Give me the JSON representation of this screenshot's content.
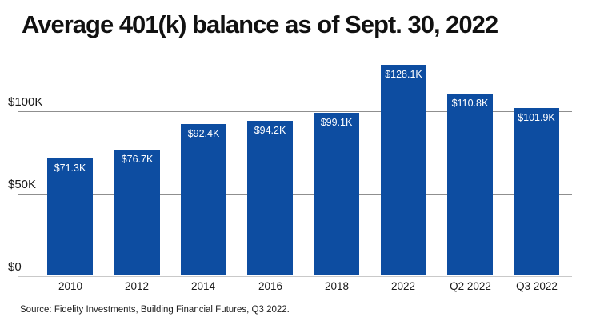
{
  "title": "Average 401(k) balance as of Sept. 30, 2022",
  "source": "Source: Fidelity Investments, Building Financial Futures, Q3 2022.",
  "chart_data": {
    "type": "bar",
    "title": "Average 401(k) balance as of Sept. 30, 2022",
    "categories": [
      "2010",
      "2012",
      "2014",
      "2016",
      "2018",
      "2022",
      "Q2 2022",
      "Q3 2022"
    ],
    "values": [
      71.3,
      76.7,
      92.4,
      94.2,
      99.1,
      128.1,
      110.8,
      101.9
    ],
    "value_labels": [
      "$71.3K",
      "$76.7K",
      "$92.4K",
      "$94.2K",
      "$99.1K",
      "$128.1K",
      "$110.8K",
      "$101.9K"
    ],
    "unit": "thousand USD",
    "xlabel": "",
    "ylabel": "",
    "ylim": [
      0,
      135
    ],
    "yticks": [
      {
        "value": 0,
        "label": "$0"
      },
      {
        "value": 50,
        "label": "$50K"
      },
      {
        "value": 100,
        "label": "$100K"
      }
    ],
    "grid": true,
    "legend": "none",
    "bar_color": "#0d4da1",
    "bar_label_color": "#ffffff",
    "grid_color": "#8f8f8f",
    "axis_line_color": "#c9c9c9",
    "text_color": "#1a1a1a"
  }
}
